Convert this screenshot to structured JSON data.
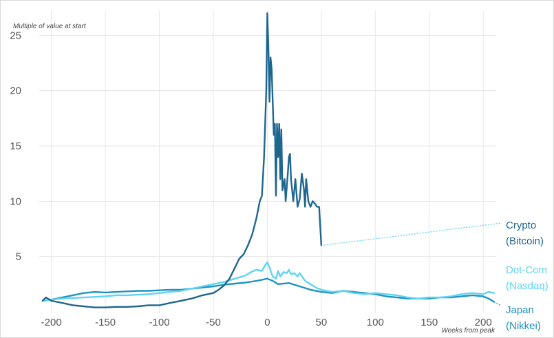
{
  "chart_data": {
    "type": "line",
    "title": "",
    "xlabel": "Weeks from peak",
    "ylabel": "Multiple of value at start",
    "xlim": [
      -210,
      212
    ],
    "ylim": [
      0,
      27.2
    ],
    "x_ticks": [
      -200,
      -150,
      -100,
      -50,
      0,
      50,
      100,
      150,
      200
    ],
    "y_ticks": [
      5,
      10,
      15,
      20,
      25
    ],
    "grid": true,
    "legend": "direct labels at right",
    "series": [
      {
        "name": "Crypto (Bitcoin)",
        "label_lines": [
          "Crypto",
          "(Bitcoin)"
        ],
        "color": "#1e6690",
        "label_color": "#1e6690",
        "label_anchor": [
          50,
          6.0
        ],
        "points": [
          [
            -208,
            1.0
          ],
          [
            -205,
            1.3
          ],
          [
            -200,
            1.0
          ],
          [
            -195,
            0.9
          ],
          [
            -190,
            0.8
          ],
          [
            -180,
            0.6
          ],
          [
            -170,
            0.5
          ],
          [
            -160,
            0.4
          ],
          [
            -150,
            0.4
          ],
          [
            -140,
            0.45
          ],
          [
            -130,
            0.45
          ],
          [
            -120,
            0.5
          ],
          [
            -110,
            0.6
          ],
          [
            -100,
            0.6
          ],
          [
            -90,
            0.8
          ],
          [
            -80,
            1.0
          ],
          [
            -70,
            1.2
          ],
          [
            -60,
            1.5
          ],
          [
            -50,
            1.7
          ],
          [
            -45,
            2.0
          ],
          [
            -40,
            2.4
          ],
          [
            -35,
            3.0
          ],
          [
            -30,
            4.0
          ],
          [
            -26,
            4.8
          ],
          [
            -22,
            5.2
          ],
          [
            -18,
            6.0
          ],
          [
            -14,
            7.0
          ],
          [
            -10,
            8.5
          ],
          [
            -7,
            10.0
          ],
          [
            -5,
            10.5
          ],
          [
            -3,
            14.0
          ],
          [
            -1,
            20.0
          ],
          [
            0,
            27.0
          ],
          [
            1,
            24.0
          ],
          [
            2,
            19.0
          ],
          [
            3,
            23.0
          ],
          [
            4,
            22.0
          ],
          [
            5,
            19.0
          ],
          [
            6,
            16.0
          ],
          [
            7,
            17.0
          ],
          [
            8,
            10.5
          ],
          [
            9,
            17.0
          ],
          [
            10,
            14.0
          ],
          [
            11,
            17.0
          ],
          [
            12,
            12.0
          ],
          [
            13,
            16.5
          ],
          [
            14,
            11.0
          ],
          [
            16,
            12.0
          ],
          [
            17,
            10.0
          ],
          [
            19,
            12.5
          ],
          [
            20,
            14.0
          ],
          [
            21,
            14.3
          ],
          [
            22,
            12.0
          ],
          [
            24,
            10.0
          ],
          [
            26,
            12.0
          ],
          [
            28,
            9.5
          ],
          [
            30,
            10.2
          ],
          [
            32,
            12.5
          ],
          [
            34,
            11.0
          ],
          [
            35,
            9.5
          ],
          [
            36,
            12.0
          ],
          [
            38,
            10.0
          ],
          [
            40,
            9.5
          ],
          [
            42,
            10.0
          ],
          [
            44,
            9.8
          ],
          [
            46,
            9.5
          ],
          [
            48,
            9.5
          ],
          [
            50,
            6.0
          ]
        ]
      },
      {
        "name": "Dot-Com (Nasdaq)",
        "label_lines": [
          "Dot-Com",
          "(Nasdaq)"
        ],
        "color": "#5fd3f2",
        "label_color": "#5fd3f2",
        "points": [
          [
            -208,
            1.0
          ],
          [
            -200,
            1.1
          ],
          [
            -190,
            1.2
          ],
          [
            -180,
            1.25
          ],
          [
            -170,
            1.3
          ],
          [
            -160,
            1.35
          ],
          [
            -150,
            1.4
          ],
          [
            -140,
            1.5
          ],
          [
            -130,
            1.5
          ],
          [
            -120,
            1.55
          ],
          [
            -110,
            1.6
          ],
          [
            -100,
            1.7
          ],
          [
            -90,
            1.8
          ],
          [
            -80,
            1.9
          ],
          [
            -70,
            2.1
          ],
          [
            -60,
            2.3
          ],
          [
            -50,
            2.5
          ],
          [
            -40,
            2.7
          ],
          [
            -30,
            3.0
          ],
          [
            -20,
            3.3
          ],
          [
            -15,
            3.6
          ],
          [
            -10,
            3.8
          ],
          [
            -5,
            3.7
          ],
          [
            -2,
            4.2
          ],
          [
            0,
            4.5
          ],
          [
            2,
            4.0
          ],
          [
            5,
            3.2
          ],
          [
            8,
            3.0
          ],
          [
            10,
            3.7
          ],
          [
            12,
            3.2
          ],
          [
            15,
            3.6
          ],
          [
            18,
            3.5
          ],
          [
            20,
            3.8
          ],
          [
            22,
            3.4
          ],
          [
            25,
            3.5
          ],
          [
            28,
            3.2
          ],
          [
            30,
            3.5
          ],
          [
            35,
            2.8
          ],
          [
            40,
            2.5
          ],
          [
            45,
            2.2
          ],
          [
            50,
            2.0
          ],
          [
            60,
            1.8
          ],
          [
            70,
            1.9
          ],
          [
            80,
            1.7
          ],
          [
            90,
            1.6
          ],
          [
            100,
            1.7
          ],
          [
            110,
            1.6
          ],
          [
            120,
            1.5
          ],
          [
            130,
            1.3
          ],
          [
            140,
            1.2
          ],
          [
            150,
            1.3
          ],
          [
            160,
            1.3
          ],
          [
            170,
            1.4
          ],
          [
            180,
            1.6
          ],
          [
            190,
            1.7
          ],
          [
            200,
            1.6
          ],
          [
            205,
            1.8
          ],
          [
            210,
            1.7
          ]
        ]
      },
      {
        "name": "Japan (Nikkei)",
        "label_lines": [
          "Japan",
          "(Nikkei)"
        ],
        "color": "#1f92c2",
        "label_color": "#1f92c2",
        "points": [
          [
            -208,
            1.0
          ],
          [
            -200,
            1.1
          ],
          [
            -190,
            1.3
          ],
          [
            -180,
            1.5
          ],
          [
            -170,
            1.7
          ],
          [
            -160,
            1.8
          ],
          [
            -150,
            1.75
          ],
          [
            -140,
            1.8
          ],
          [
            -130,
            1.85
          ],
          [
            -120,
            1.9
          ],
          [
            -110,
            1.9
          ],
          [
            -100,
            1.95
          ],
          [
            -90,
            2.0
          ],
          [
            -80,
            2.0
          ],
          [
            -70,
            2.1
          ],
          [
            -60,
            2.2
          ],
          [
            -50,
            2.3
          ],
          [
            -40,
            2.45
          ],
          [
            -30,
            2.55
          ],
          [
            -20,
            2.65
          ],
          [
            -10,
            2.8
          ],
          [
            0,
            3.0
          ],
          [
            5,
            2.8
          ],
          [
            10,
            2.5
          ],
          [
            20,
            2.6
          ],
          [
            30,
            2.3
          ],
          [
            40,
            2.0
          ],
          [
            50,
            1.8
          ],
          [
            60,
            1.7
          ],
          [
            70,
            1.9
          ],
          [
            80,
            1.8
          ],
          [
            90,
            1.7
          ],
          [
            100,
            1.6
          ],
          [
            110,
            1.4
          ],
          [
            120,
            1.3
          ],
          [
            130,
            1.2
          ],
          [
            140,
            1.2
          ],
          [
            150,
            1.2
          ],
          [
            160,
            1.3
          ],
          [
            170,
            1.3
          ],
          [
            180,
            1.4
          ],
          [
            190,
            1.5
          ],
          [
            200,
            1.4
          ],
          [
            205,
            1.2
          ],
          [
            210,
            0.9
          ]
        ]
      }
    ]
  }
}
